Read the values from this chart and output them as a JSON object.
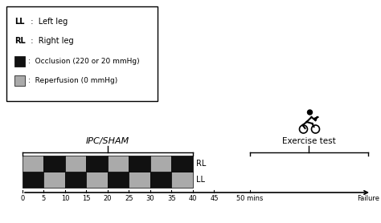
{
  "ipc_label": "IPC/SHAM",
  "exercise_label": "Exercise test",
  "LL_pattern": [
    "black",
    "gray",
    "black",
    "gray",
    "black",
    "gray",
    "black",
    "gray"
  ],
  "RL_pattern": [
    "gray",
    "black",
    "gray",
    "black",
    "gray",
    "black",
    "gray",
    "black"
  ],
  "black_color": "#111111",
  "gray_color": "#aaaaaa",
  "background": "#ffffff",
  "legend_items": [
    {
      "bold": "LL",
      "text": "  :  Left leg"
    },
    {
      "bold": "RL",
      "text": "  :  Right leg"
    },
    {
      "box": "black",
      "text": " :  Occlusion (220 or 20 mmHg)"
    },
    {
      "box": "gray",
      "text": " :  Reperfusion (0 mmHg)"
    }
  ],
  "ticks": [
    0,
    5,
    10,
    15,
    20,
    25,
    30,
    35,
    40,
    45
  ],
  "tick_labels": [
    "0",
    "5",
    "10",
    "15",
    "20",
    "25",
    "30",
    "35",
    "40",
    "45"
  ],
  "special_tick": 50,
  "special_tick_label": "50 mins",
  "end_label": "Failure"
}
